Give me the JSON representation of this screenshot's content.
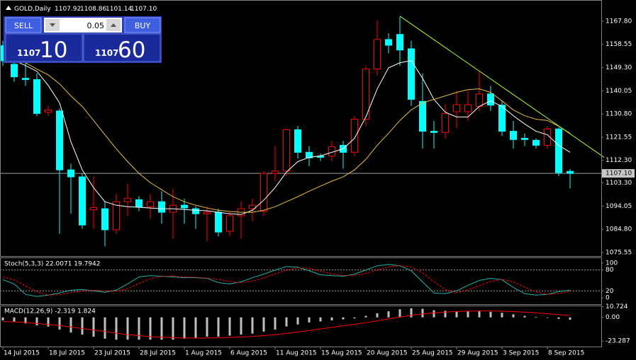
{
  "header": {
    "symbol": "GOLD,Daily",
    "ohlc_labels": [
      "1107.92",
      "1108.86",
      "1101.14",
      "1107.10"
    ]
  },
  "trade_panel": {
    "sell": "SELL",
    "buy": "BUY",
    "lot": "0.05",
    "bid_big": "1107",
    "bid_small": "10",
    "ask_big": "1107",
    "ask_small": "60"
  },
  "chart_data": [
    {
      "type": "candlestick",
      "categories": [
        "14 Jul 2015",
        null,
        null,
        null,
        "18 Jul 2015",
        null,
        null,
        null,
        "23 Jul 2015",
        null,
        null,
        null,
        "28 Jul 2015",
        null,
        null,
        null,
        "1 Aug 2015",
        null,
        null,
        null,
        "6 Aug 2015",
        null,
        null,
        null,
        "11 Aug 2015",
        null,
        null,
        null,
        "15 Aug 2015",
        null,
        null,
        null,
        "20 Aug 2015",
        null,
        null,
        null,
        "25 Aug 2015",
        null,
        null,
        null,
        "29 Aug 2015",
        null,
        null,
        null,
        "3 Sep 2015",
        null,
        null,
        null,
        "8 Sep 2015",
        null,
        null
      ],
      "open": [
        1158,
        1150.6,
        1145,
        1144.5,
        1131.5,
        1132,
        1108.5,
        1105.7,
        1092.6,
        1093,
        1084.6,
        1095.8,
        1096.6,
        1093.8,
        1095.8,
        1091.6,
        1094.4,
        1093,
        1091,
        1091.6,
        1084,
        1090.2,
        1093,
        1092,
        1107.1,
        1108,
        1124.5,
        1115.5,
        1114,
        1114,
        1118.3,
        1115.5,
        1128.7,
        1148.7,
        1160.5,
        1162.5,
        1156.8,
        1135.8,
        1123.9,
        1123.4,
        1131.7,
        1131.7,
        1133.8,
        1138.8,
        1134.3,
        1123.9,
        1121.1,
        1120.3,
        1118.3,
        1124.8,
        1107.92
      ],
      "high": [
        1160,
        1153.5,
        1152,
        1147,
        1134,
        1133,
        1111,
        1107,
        1106,
        1096,
        1099,
        1103,
        1098,
        1099,
        1100,
        1101,
        1097,
        1094,
        1094,
        1093,
        1092,
        1096,
        1097,
        1108,
        1118,
        1125,
        1126,
        1118,
        1115,
        1120,
        1120,
        1130,
        1150,
        1168,
        1163,
        1169.5,
        1160,
        1147,
        1128,
        1135,
        1140,
        1140,
        1148,
        1142,
        1136,
        1128,
        1123,
        1121,
        1126,
        1125.5,
        1108.86
      ],
      "low": [
        1150,
        1143.6,
        1142,
        1130,
        1130,
        1083,
        1091,
        1085,
        1085,
        1078,
        1083,
        1090,
        1092,
        1089,
        1087,
        1081,
        1087,
        1085,
        1080,
        1082,
        1082,
        1081,
        1088,
        1090,
        1104,
        1106,
        1113,
        1110,
        1112,
        1112,
        1109,
        1114,
        1126,
        1146,
        1155,
        1150,
        1134,
        1117,
        1117,
        1121,
        1125,
        1128,
        1132,
        1132,
        1122,
        1117,
        1118,
        1117,
        1117,
        1106,
        1101.14
      ],
      "close": [
        1152,
        1145.6,
        1144.5,
        1131,
        1132.4,
        1108.5,
        1105.7,
        1086.5,
        1093.5,
        1084.6,
        1095.8,
        1097.2,
        1093.6,
        1095.8,
        1091.6,
        1094.4,
        1093.3,
        1091,
        1091.6,
        1083.7,
        1090.2,
        1093,
        1094.4,
        1107.1,
        1108,
        1124.5,
        1115.5,
        1113.3,
        1113.5,
        1117.7,
        1115.5,
        1128.7,
        1148.7,
        1160.5,
        1158.2,
        1156.3,
        1136.6,
        1123.9,
        1123.4,
        1131,
        1134.5,
        1134.5,
        1138.8,
        1134.3,
        1123.9,
        1120.6,
        1120.6,
        1118.3,
        1124.8,
        1107.4,
        1107.1
      ],
      "up_color": "#ff0000",
      "down_color": "#00ffff",
      "overlays": [
        {
          "color": "#ffffff",
          "values": [
            null,
            1152.1,
            1150.1,
            1147.8,
            1142.2,
            1135.2,
            1119.7,
            1108.5,
            1101.4,
            1095.8,
            1094.4,
            1093.8,
            1093.6,
            1093.3,
            1093.0,
            1093.0,
            1092.7,
            1092.4,
            1092.2,
            1091.6,
            1091.0,
            1090.7,
            1092.4,
            1096.4,
            1101.4,
            1107.6,
            1111.8,
            1113.5,
            1114.1,
            1115.5,
            1116.9,
            1121.1,
            1129.6,
            1140.8,
            1149.2,
            1151.2,
            1152.1,
            1145.0,
            1136.6,
            1131.5,
            1129.6,
            1129.6,
            1133.8,
            1136.0,
            1133.8,
            1130.1,
            1126.8,
            1123.9,
            1122.5,
            1118.3,
            1115.5
          ]
        },
        {
          "color": "#e8c040",
          "values": [
            null,
            1152.9,
            1151.2,
            1148.7,
            1146.4,
            1142.8,
            1138.0,
            1133.8,
            1128.2,
            1122.5,
            1116.9,
            1111.8,
            1107.1,
            1103.4,
            1100.6,
            1097.8,
            1095.8,
            1094.4,
            1093.3,
            1092.4,
            1091.9,
            1091.6,
            1091.6,
            1092.4,
            1093.8,
            1095.8,
            1097.8,
            1100.0,
            1102.0,
            1104.0,
            1105.7,
            1108.5,
            1112.7,
            1118.3,
            1123.1,
            1128.2,
            1132.4,
            1135.2,
            1136.6,
            1138.0,
            1139.4,
            1140.5,
            1140.8,
            1139.4,
            1136.0,
            1132.4,
            1130.1,
            1128.7,
            1128.2,
            1125.9,
            1123.1
          ]
        }
      ],
      "trendline": {
        "color": "#adff2f",
        "x": [
          35,
          53
        ],
        "y": [
          1169.8,
          1113.5
        ]
      },
      "current_price": {
        "value": 1107.1,
        "label": "1107.10"
      },
      "ylim": [
        1074.14,
        1175.96
      ],
      "yticks": [
        {
          "value": 1167.8,
          "label": "1167.80"
        },
        {
          "value": 1158.55,
          "label": "1158.55"
        },
        {
          "value": 1149.3,
          "label": "1149.30"
        },
        {
          "value": 1140.05,
          "label": "1140.05"
        },
        {
          "value": 1130.8,
          "label": "1130.80"
        },
        {
          "value": 1121.55,
          "label": "1121.55"
        },
        {
          "value": 1112.3,
          "label": "1112.30"
        },
        {
          "value": 1103.3,
          "label": "1103.30"
        },
        {
          "value": 1094.05,
          "label": "1094.05"
        },
        {
          "value": 1084.8,
          "label": "1084.80"
        },
        {
          "value": 1075.55,
          "label": "1075.55"
        }
      ]
    },
    {
      "type": "line",
      "title": "Stoch(5,3,3) 22.0071 19.7942",
      "series": [
        {
          "color": "#20b2aa",
          "values": [
            52,
            40,
            10,
            4,
            8,
            14,
            22,
            24,
            20,
            16,
            22,
            40,
            60,
            64,
            62,
            60,
            58,
            58,
            56,
            44,
            40,
            46,
            58,
            68,
            80,
            90,
            88,
            78,
            66,
            64,
            62,
            68,
            80,
            92,
            96,
            92,
            78,
            46,
            14,
            12,
            20,
            36,
            50,
            56,
            52,
            30,
            12,
            8,
            10,
            18,
            22.0071
          ]
        },
        {
          "color": "#ff0000",
          "dashed": true,
          "values": [
            60,
            52,
            34,
            18,
            8,
            9,
            15,
            20,
            22,
            20,
            19,
            26,
            41,
            55,
            62,
            62,
            60,
            59,
            57,
            53,
            47,
            43,
            48,
            57,
            69,
            79,
            86,
            85,
            77,
            69,
            64,
            65,
            70,
            80,
            89,
            93,
            89,
            72,
            46,
            24,
            15,
            23,
            35,
            47,
            53,
            46,
            31,
            17,
            10,
            12,
            19.7942
          ]
        }
      ],
      "levels": [
        80,
        20
      ],
      "ylim": [
        -18,
        114
      ],
      "yticks": [
        100,
        80,
        20,
        0
      ]
    },
    {
      "type": "macd",
      "title": "MACD(12,26,9) -2.319 1.824",
      "values": [
        -3,
        -4,
        -6,
        -8,
        -9,
        -12,
        -15,
        -17,
        -19,
        -21,
        -22,
        -22,
        -22,
        -22,
        -22,
        -22,
        -21,
        -20,
        -19,
        -19,
        -18,
        -17,
        -16,
        -14,
        -12,
        -9,
        -7,
        -5,
        -4,
        -3,
        -2,
        -1,
        1.5,
        4,
        6,
        8,
        9,
        8.5,
        7,
        6.5,
        6,
        6,
        6,
        5.5,
        4.5,
        3,
        1.5,
        0.5,
        -0.5,
        -1.5,
        -2.319
      ],
      "color": "#c0c0c0",
      "signal": {
        "color": "#ff0000",
        "values": [
          -4,
          -4.5,
          -5,
          -6,
          -7,
          -8,
          -9.5,
          -11,
          -12.5,
          -14,
          -15.5,
          -17,
          -18,
          -19,
          -19.5,
          -20,
          -20.3,
          -20.4,
          -20.3,
          -20.1,
          -19.8,
          -19.4,
          -18.8,
          -18,
          -17,
          -15.8,
          -14.4,
          -12.9,
          -11.4,
          -9.9,
          -8.4,
          -6.9,
          -5.2,
          -3.4,
          -1.5,
          0.4,
          2.1,
          3.4,
          4.4,
          5.2,
          5.8,
          6.1,
          6.3,
          6.3,
          6.1,
          5.7,
          5.1,
          4.4,
          3.6,
          2.7,
          1.824
        ]
      },
      "ylim": [
        -28.77,
        10.96
      ],
      "yticks": [
        10.724,
        {
          "value": 0,
          "label": "0.00"
        },
        -23.287
      ]
    }
  ]
}
